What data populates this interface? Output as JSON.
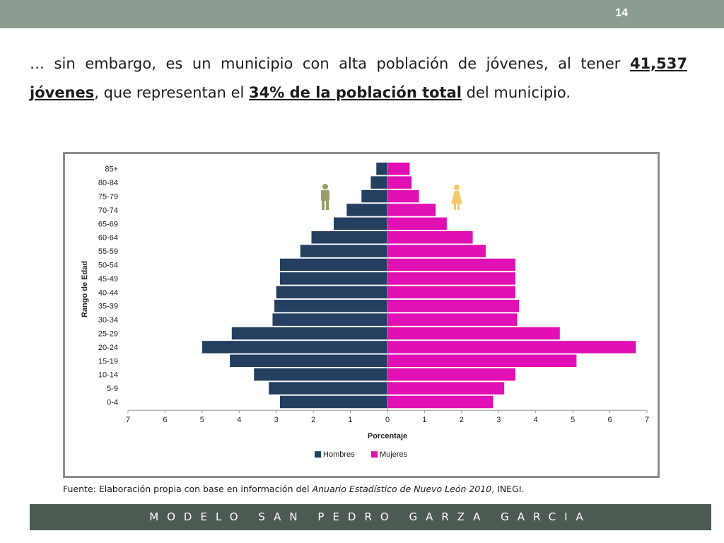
{
  "slide": {
    "page_number": "14",
    "text": {
      "part1": "… sin embargo, es un municipio con alta población de jóvenes, al tener ",
      "bold1": "41,537 jóvenes",
      "part2": ", que representan el  ",
      "bold2": "34% de la población total",
      "part3": " del municipio."
    },
    "source": {
      "prefix": "Fuente: Elaboración propia con base en información del ",
      "italic": "Anuario Estadístico de Nuevo León 2010",
      "suffix": ", INEGI."
    },
    "footer": "MODELO SAN PEDRO GARZA GARCIA"
  },
  "colors": {
    "hombres": "#243f60",
    "mujeres": "#e010b4",
    "man_icon": "#9c9c6c",
    "woman_icon": "#f5c86e"
  },
  "icons": {
    "male": "man-icon",
    "female": "woman-icon"
  },
  "chart_data": {
    "type": "bar",
    "orientation": "horizontal",
    "subtype": "population-pyramid",
    "categories": [
      "85+",
      "80-84",
      "75-79",
      "70-74",
      "65-69",
      "60-64",
      "55-59",
      "50-54",
      "45-49",
      "40-44",
      "35-39",
      "30-34",
      "25-29",
      "20-24",
      "15-19",
      "10-14",
      "5-9",
      "0-4"
    ],
    "series": [
      {
        "name": "Hombres",
        "values": [
          0.3,
          0.45,
          0.7,
          1.1,
          1.45,
          2.05,
          2.35,
          2.9,
          2.9,
          3.0,
          3.05,
          3.1,
          4.2,
          5.0,
          4.25,
          3.6,
          3.2,
          2.9
        ]
      },
      {
        "name": "Mujeres",
        "values": [
          0.6,
          0.65,
          0.85,
          1.3,
          1.6,
          2.3,
          2.65,
          3.45,
          3.45,
          3.45,
          3.55,
          3.5,
          4.65,
          6.7,
          5.1,
          3.45,
          3.15,
          2.85
        ]
      }
    ],
    "xlabel": "Porcentaje",
    "ylabel": "Rango de Edad",
    "xlim": [
      -7,
      7
    ],
    "xticks": [
      "7",
      "6",
      "5",
      "4",
      "3",
      "2",
      "1",
      "0",
      "1",
      "2",
      "3",
      "4",
      "5",
      "6",
      "7"
    ],
    "legend": {
      "position": "bottom"
    },
    "grid": false
  }
}
